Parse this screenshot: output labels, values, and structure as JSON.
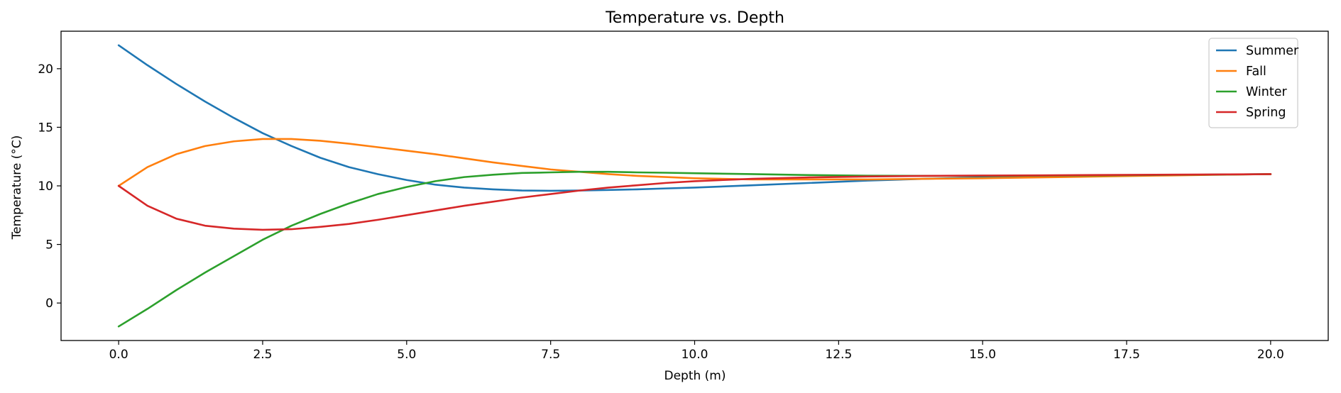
{
  "chart_data": {
    "type": "line",
    "title": "Temperature vs. Depth",
    "xlabel": "Depth (m)",
    "ylabel": "Temperature (°C)",
    "xlim": [
      -1.0,
      21.0
    ],
    "ylim": [
      -3.2,
      23.2
    ],
    "xticks": [
      0.0,
      2.5,
      5.0,
      7.5,
      10.0,
      12.5,
      15.0,
      17.5,
      20.0
    ],
    "xtick_labels": [
      "0.0",
      "2.5",
      "5.0",
      "7.5",
      "10.0",
      "12.5",
      "15.0",
      "17.5",
      "20.0"
    ],
    "yticks": [
      0,
      5,
      10,
      15,
      20
    ],
    "ytick_labels": [
      "0",
      "5",
      "10",
      "15",
      "20"
    ],
    "grid": false,
    "legend_position": "top-right",
    "x": [
      0,
      0.5,
      1,
      1.5,
      2,
      2.5,
      3,
      3.5,
      4,
      4.5,
      5,
      5.5,
      6,
      6.5,
      7,
      7.5,
      8,
      8.5,
      9,
      9.5,
      10,
      11,
      12,
      13,
      14,
      15,
      16,
      17,
      18,
      19,
      20
    ],
    "series": [
      {
        "name": "Summer",
        "color": "#1f77b4",
        "values": [
          22.0,
          20.3,
          18.7,
          17.2,
          15.8,
          14.5,
          13.4,
          12.4,
          11.6,
          11.0,
          10.5,
          10.1,
          9.85,
          9.7,
          9.6,
          9.58,
          9.6,
          9.65,
          9.7,
          9.78,
          9.85,
          10.05,
          10.25,
          10.45,
          10.6,
          10.72,
          10.8,
          10.87,
          10.92,
          10.96,
          11.0
        ]
      },
      {
        "name": "Fall",
        "color": "#ff7f0e",
        "values": [
          10.0,
          11.6,
          12.7,
          13.4,
          13.8,
          14.0,
          14.0,
          13.85,
          13.6,
          13.3,
          13.0,
          12.7,
          12.35,
          12.0,
          11.7,
          11.4,
          11.2,
          11.0,
          10.85,
          10.75,
          10.65,
          10.55,
          10.55,
          10.55,
          10.6,
          10.65,
          10.72,
          10.8,
          10.87,
          10.94,
          11.0
        ]
      },
      {
        "name": "Winter",
        "color": "#2ca02c",
        "values": [
          -2.0,
          -0.5,
          1.1,
          2.6,
          4.0,
          5.4,
          6.6,
          7.6,
          8.5,
          9.3,
          9.9,
          10.4,
          10.75,
          10.95,
          11.1,
          11.15,
          11.2,
          11.2,
          11.15,
          11.12,
          11.08,
          11.0,
          10.92,
          10.87,
          10.85,
          10.85,
          10.87,
          10.9,
          10.93,
          10.96,
          11.0
        ]
      },
      {
        "name": "Spring",
        "color": "#d62728",
        "values": [
          10.0,
          8.3,
          7.2,
          6.6,
          6.35,
          6.25,
          6.3,
          6.5,
          6.75,
          7.1,
          7.5,
          7.9,
          8.3,
          8.65,
          9.0,
          9.3,
          9.6,
          9.85,
          10.05,
          10.25,
          10.4,
          10.6,
          10.72,
          10.8,
          10.85,
          10.88,
          10.9,
          10.93,
          10.95,
          10.97,
          11.0
        ]
      }
    ]
  }
}
